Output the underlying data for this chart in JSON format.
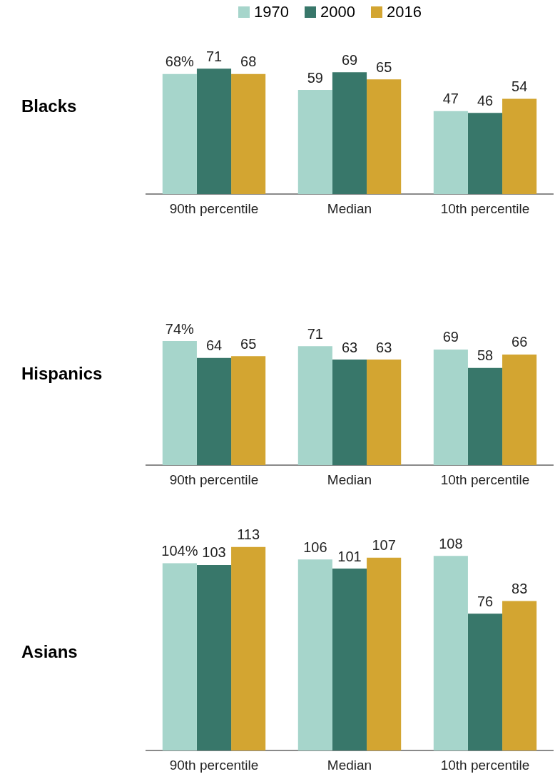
{
  "chart_data": [
    {
      "type": "bar",
      "title": "Blacks",
      "categories": [
        "90th percentile",
        "Median",
        "10th percentile"
      ],
      "legend": "top",
      "series": [
        {
          "name": "1970",
          "color": "#a6d5cb",
          "values": [
            68,
            59,
            47
          ],
          "value_labels": [
            "68%",
            "59",
            "47"
          ]
        },
        {
          "name": "2000",
          "color": "#38776a",
          "values": [
            71,
            69,
            46
          ],
          "value_labels": [
            "71",
            "69",
            "46"
          ]
        },
        {
          "name": "2016",
          "color": "#d3a531",
          "values": [
            68,
            65,
            54
          ],
          "value_labels": [
            "68",
            "65",
            "54"
          ]
        }
      ]
    },
    {
      "type": "bar",
      "title": "Hispanics",
      "categories": [
        "90th percentile",
        "Median",
        "10th percentile"
      ],
      "series": [
        {
          "name": "1970",
          "color": "#a6d5cb",
          "values": [
            74,
            71,
            69
          ],
          "value_labels": [
            "74%",
            "71",
            "69"
          ]
        },
        {
          "name": "2000",
          "color": "#38776a",
          "values": [
            64,
            63,
            58
          ],
          "value_labels": [
            "64",
            "63",
            "58"
          ]
        },
        {
          "name": "2016",
          "color": "#d3a531",
          "values": [
            65,
            63,
            66
          ],
          "value_labels": [
            "65",
            "63",
            "66"
          ]
        }
      ]
    },
    {
      "type": "bar",
      "title": "Asians",
      "categories": [
        "90th percentile",
        "Median",
        "10th percentile"
      ],
      "series": [
        {
          "name": "1970",
          "color": "#a6d5cb",
          "values": [
            104,
            106,
            108
          ],
          "value_labels": [
            "104%",
            "106",
            "108"
          ]
        },
        {
          "name": "2000",
          "color": "#38776a",
          "values": [
            103,
            101,
            76
          ],
          "value_labels": [
            "103",
            "101",
            "76"
          ]
        },
        {
          "name": "2016",
          "color": "#d3a531",
          "values": [
            113,
            107,
            83
          ],
          "value_labels": [
            "113",
            "107",
            "83"
          ]
        }
      ]
    }
  ]
}
